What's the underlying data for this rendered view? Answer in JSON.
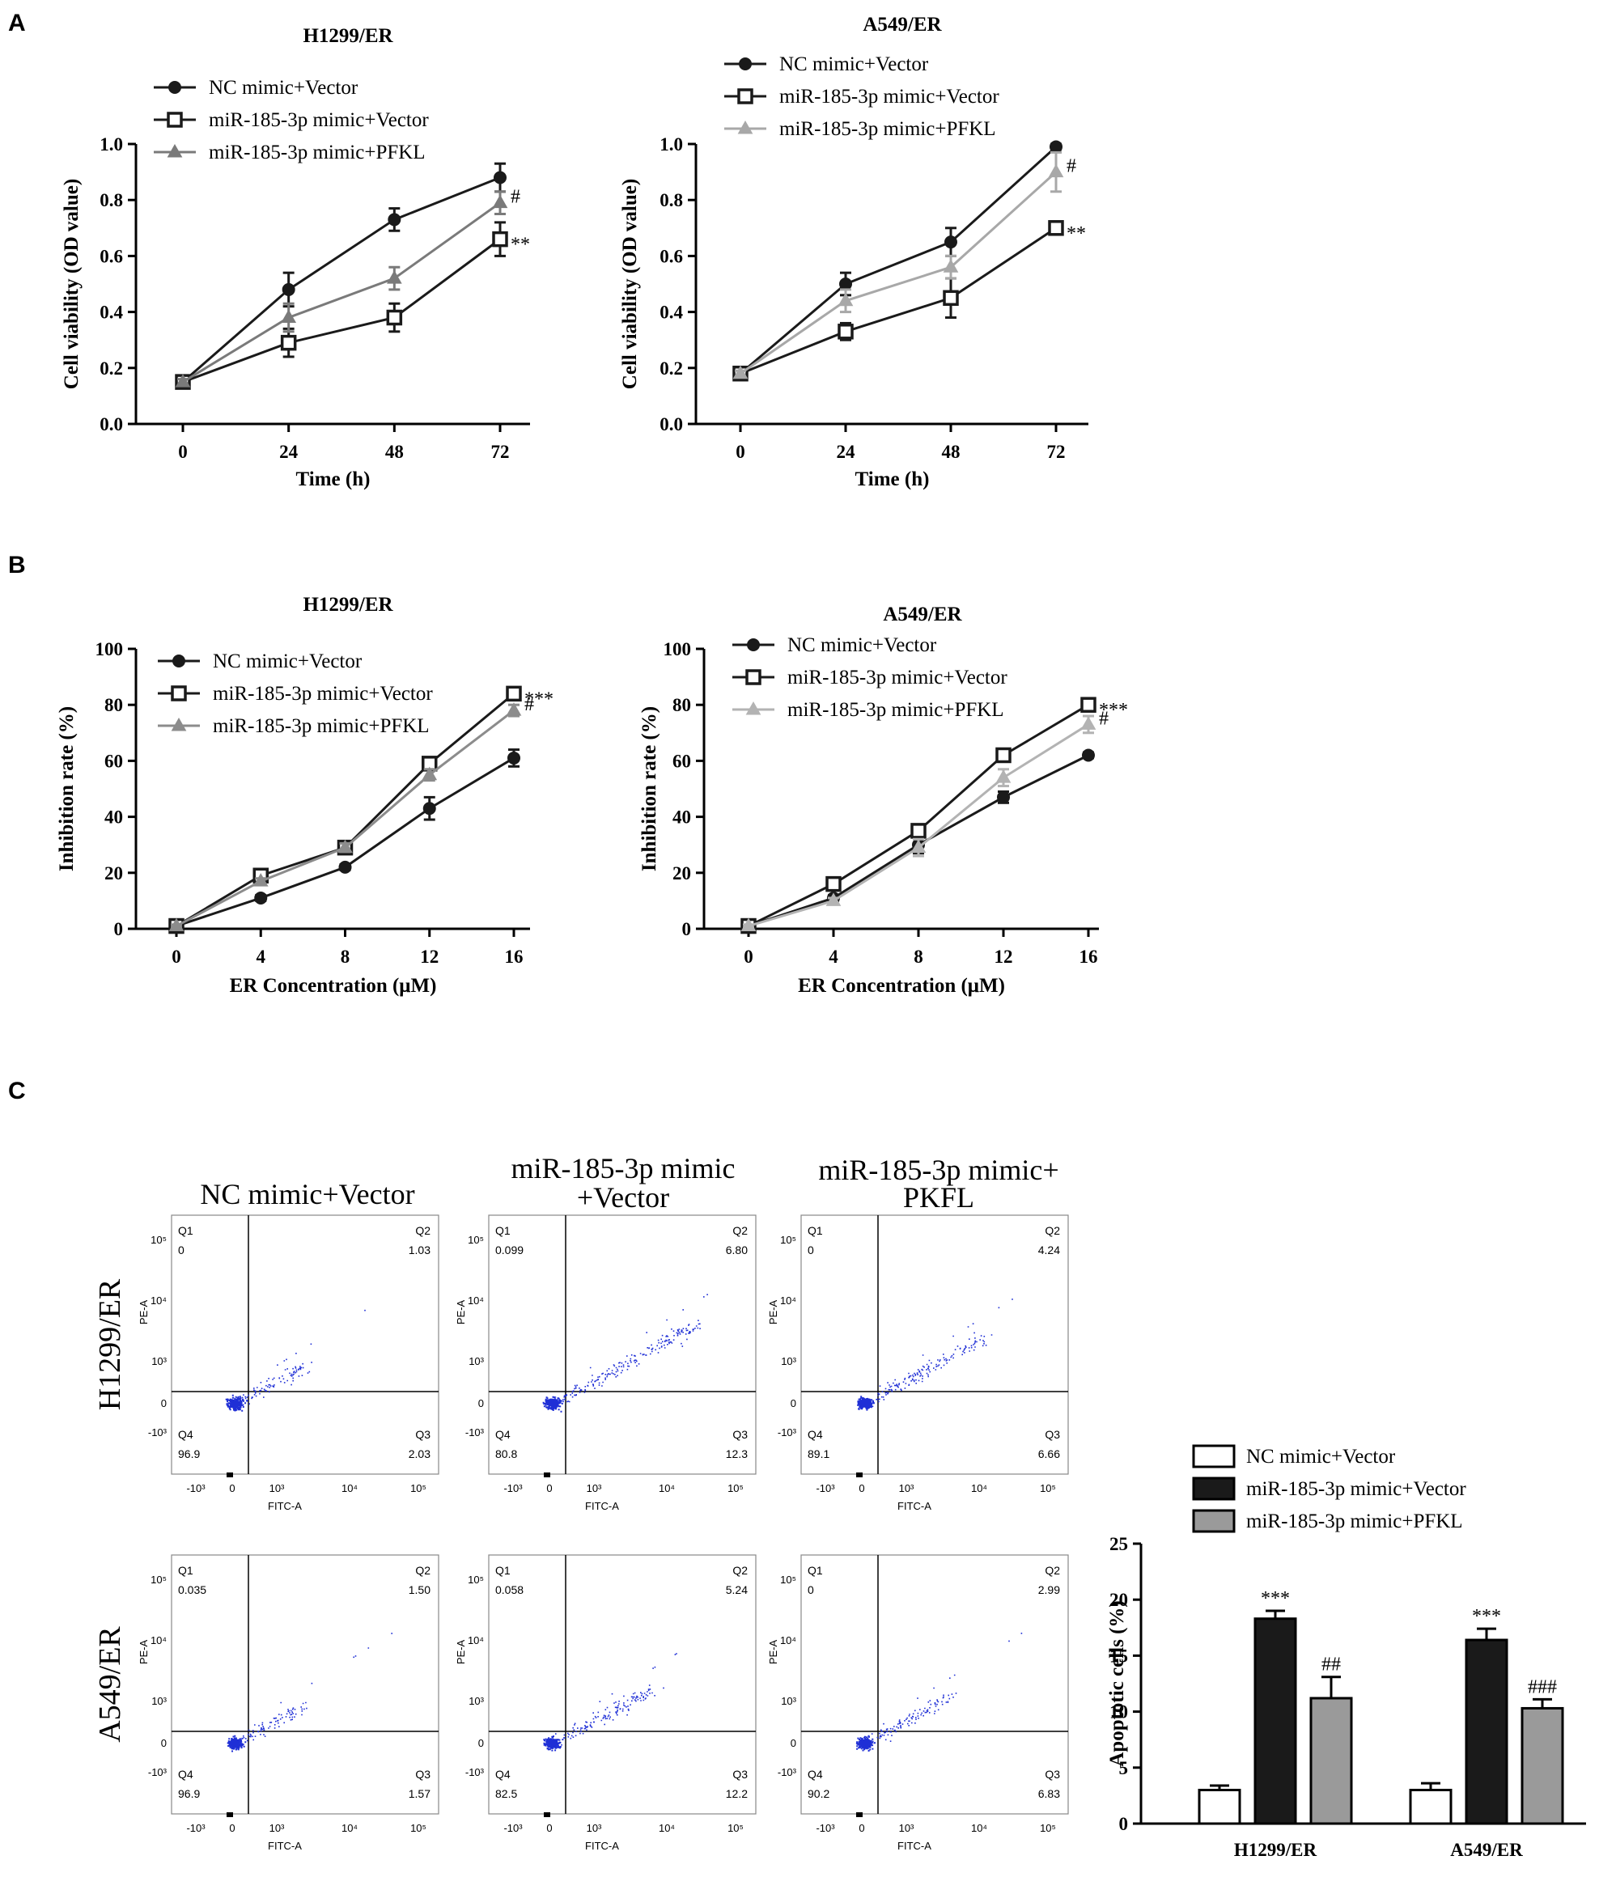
{
  "panels": {
    "A": "A",
    "B": "B",
    "C": "C"
  },
  "chart_data": [
    {
      "id": "A1",
      "type": "line",
      "title": "H1299/ER",
      "xlabel": "Time (h)",
      "ylabel": "Cell viability (OD value)",
      "x": [
        0,
        24,
        48,
        72
      ],
      "ylim": [
        0,
        1.0
      ],
      "yticks": [
        "0.0",
        "0.2",
        "0.4",
        "0.6",
        "0.8",
        "1.0"
      ],
      "xticks": [
        "0",
        "24",
        "48",
        "72"
      ],
      "series": [
        {
          "name": "NC mimic+Vector",
          "values": [
            0.15,
            0.48,
            0.73,
            0.88
          ],
          "errors": [
            0.01,
            0.06,
            0.04,
            0.05
          ],
          "color": "#1a1a1a",
          "marker": "circle"
        },
        {
          "name": "miR-185-3p mimic+Vector",
          "values": [
            0.15,
            0.29,
            0.38,
            0.66
          ],
          "errors": [
            0.01,
            0.05,
            0.05,
            0.06
          ],
          "color": "#1a1a1a",
          "marker": "square"
        },
        {
          "name": "miR-185-3p mimic+PFKL",
          "values": [
            0.15,
            0.38,
            0.52,
            0.79
          ],
          "errors": [
            0.01,
            0.05,
            0.04,
            0.04
          ],
          "color": "#7a7a7a",
          "marker": "triangle"
        }
      ],
      "annotations": [
        {
          "text": "#",
          "series": 2
        },
        {
          "text": "**",
          "series": 1
        }
      ]
    },
    {
      "id": "A2",
      "type": "line",
      "title": "A549/ER",
      "xlabel": "Time (h)",
      "ylabel": "Cell viability (OD value)",
      "x": [
        0,
        24,
        48,
        72
      ],
      "ylim": [
        0,
        1.0
      ],
      "yticks": [
        "0.0",
        "0.2",
        "0.4",
        "0.6",
        "0.8",
        "1.0"
      ],
      "xticks": [
        "0",
        "24",
        "48",
        "72"
      ],
      "series": [
        {
          "name": "NC mimic+Vector",
          "values": [
            0.18,
            0.5,
            0.65,
            0.99
          ],
          "errors": [
            0.01,
            0.04,
            0.05,
            0.01
          ],
          "color": "#1a1a1a",
          "marker": "circle"
        },
        {
          "name": "miR-185-3p mimic+Vector",
          "values": [
            0.18,
            0.33,
            0.45,
            0.7
          ],
          "errors": [
            0.01,
            0.03,
            0.07,
            0.01
          ],
          "color": "#1a1a1a",
          "marker": "square"
        },
        {
          "name": "miR-185-3p mimic+PFKL",
          "values": [
            0.18,
            0.44,
            0.56,
            0.9
          ],
          "errors": [
            0.01,
            0.04,
            0.04,
            0.07
          ],
          "color": "#a8a8a8",
          "marker": "triangle"
        }
      ],
      "annotations": [
        {
          "text": "#",
          "series": 2
        },
        {
          "text": "**",
          "series": 1
        }
      ]
    },
    {
      "id": "B1",
      "type": "line",
      "title": "H1299/ER",
      "xlabel": "ER Concentration (μM)",
      "ylabel": "Inhibition rate (%)",
      "x": [
        0,
        4,
        8,
        12,
        16
      ],
      "ylim": [
        0,
        100
      ],
      "yticks": [
        "0",
        "20",
        "40",
        "60",
        "80",
        "100"
      ],
      "xticks": [
        "0",
        "4",
        "8",
        "12",
        "16"
      ],
      "series": [
        {
          "name": "NC mimic+Vector",
          "values": [
            1,
            11,
            22,
            43,
            61
          ],
          "errors": [
            0.5,
            1,
            1,
            4,
            3
          ],
          "color": "#1a1a1a",
          "marker": "circle"
        },
        {
          "name": "miR-185-3p mimic+Vector",
          "values": [
            1,
            19,
            29,
            59,
            84
          ],
          "errors": [
            0.5,
            1,
            1.5,
            2,
            1
          ],
          "color": "#1a1a1a",
          "marker": "square"
        },
        {
          "name": "miR-185-3p mimic+PFKL",
          "values": [
            1,
            17,
            29,
            55,
            78
          ],
          "errors": [
            0.5,
            1,
            1.5,
            2,
            2
          ],
          "color": "#8c8c8c",
          "marker": "triangle"
        }
      ],
      "annotations": [
        {
          "text": "***",
          "series": 1
        },
        {
          "text": "#",
          "series": 2
        }
      ]
    },
    {
      "id": "B2",
      "type": "line",
      "title": "A549/ER",
      "xlabel": "ER Concentration (μM)",
      "ylabel": "Inhibition rate (%)",
      "x": [
        0,
        4,
        8,
        12,
        16
      ],
      "ylim": [
        0,
        100
      ],
      "yticks": [
        "0",
        "20",
        "40",
        "60",
        "80",
        "100"
      ],
      "xticks": [
        "0",
        "4",
        "8",
        "12",
        "16"
      ],
      "series": [
        {
          "name": "NC mimic+Vector",
          "values": [
            1,
            11,
            30,
            47,
            62
          ],
          "errors": [
            0.5,
            1,
            3,
            2,
            1
          ],
          "color": "#1a1a1a",
          "marker": "circle"
        },
        {
          "name": "miR-185-3p mimic+Vector",
          "values": [
            1,
            16,
            35,
            62,
            80
          ],
          "errors": [
            0.5,
            1,
            2,
            1.5,
            1
          ],
          "color": "#1a1a1a",
          "marker": "square"
        },
        {
          "name": "miR-185-3p mimic+PFKL",
          "values": [
            1,
            10,
            29,
            54,
            73
          ],
          "errors": [
            0.5,
            1,
            3,
            3,
            3
          ],
          "color": "#b3b3b3",
          "marker": "triangle"
        }
      ],
      "annotations": [
        {
          "text": "***",
          "series": 1
        },
        {
          "text": "#",
          "series": 2
        }
      ]
    },
    {
      "id": "C-bar",
      "type": "bar",
      "categories": [
        "H1299/ER",
        "A549/ER"
      ],
      "ylabel": "Apoptotic cells (%)",
      "ylim": [
        0,
        25
      ],
      "yticks": [
        "0",
        "5",
        "10",
        "15",
        "20",
        "25"
      ],
      "series": [
        {
          "name": "NC mimic+Vector",
          "values": [
            3.0,
            3.0
          ],
          "errors": [
            0.4,
            0.6
          ],
          "color": "#ffffff",
          "labels": [
            "",
            ""
          ]
        },
        {
          "name": "miR-185-3p mimic+Vector",
          "values": [
            18.3,
            16.4
          ],
          "errors": [
            0.7,
            1.0
          ],
          "color": "#1a1a1a",
          "labels": [
            "***",
            "***"
          ]
        },
        {
          "name": "miR-185-3p mimic+PFKL",
          "values": [
            11.2,
            10.3
          ],
          "errors": [
            1.9,
            0.8
          ],
          "color": "#9a9a9a",
          "labels": [
            "##",
            "###"
          ]
        }
      ]
    }
  ],
  "flow": {
    "columns": [
      "NC mimic+Vector",
      "miR-185-3p mimic\n+Vector",
      "miR-185-3p mimic+\nPKFL"
    ],
    "rows": [
      "H1299/ER",
      "A549/ER"
    ],
    "yaxis_label": "PE-A",
    "xaxis_label": "FITC-A",
    "y_ticks": [
      "10⁵",
      "10⁴",
      "10³",
      "0",
      "-10³"
    ],
    "x_ticks": [
      "-10³",
      "0",
      "10³",
      "10⁴",
      "10⁵"
    ],
    "plots": [
      {
        "q1": "0",
        "q2": "1.03",
        "q3": "2.03",
        "q4": "96.9",
        "spread": 0.3
      },
      {
        "q1": "0.099",
        "q2": "6.80",
        "q3": "12.3",
        "q4": "80.8",
        "spread": 1.0
      },
      {
        "q1": "0",
        "q2": "4.24",
        "q3": "6.66",
        "q4": "89.1",
        "spread": 0.75
      },
      {
        "q1": "0.035",
        "q2": "1.50",
        "q3": "1.57",
        "q4": "96.9",
        "spread": 0.28
      },
      {
        "q1": "0.058",
        "q2": "5.24",
        "q3": "12.2",
        "q4": "82.5",
        "spread": 0.6
      },
      {
        "q1": "0",
        "q2": "2.99",
        "q3": "6.83",
        "q4": "90.2",
        "spread": 0.45
      }
    ]
  }
}
